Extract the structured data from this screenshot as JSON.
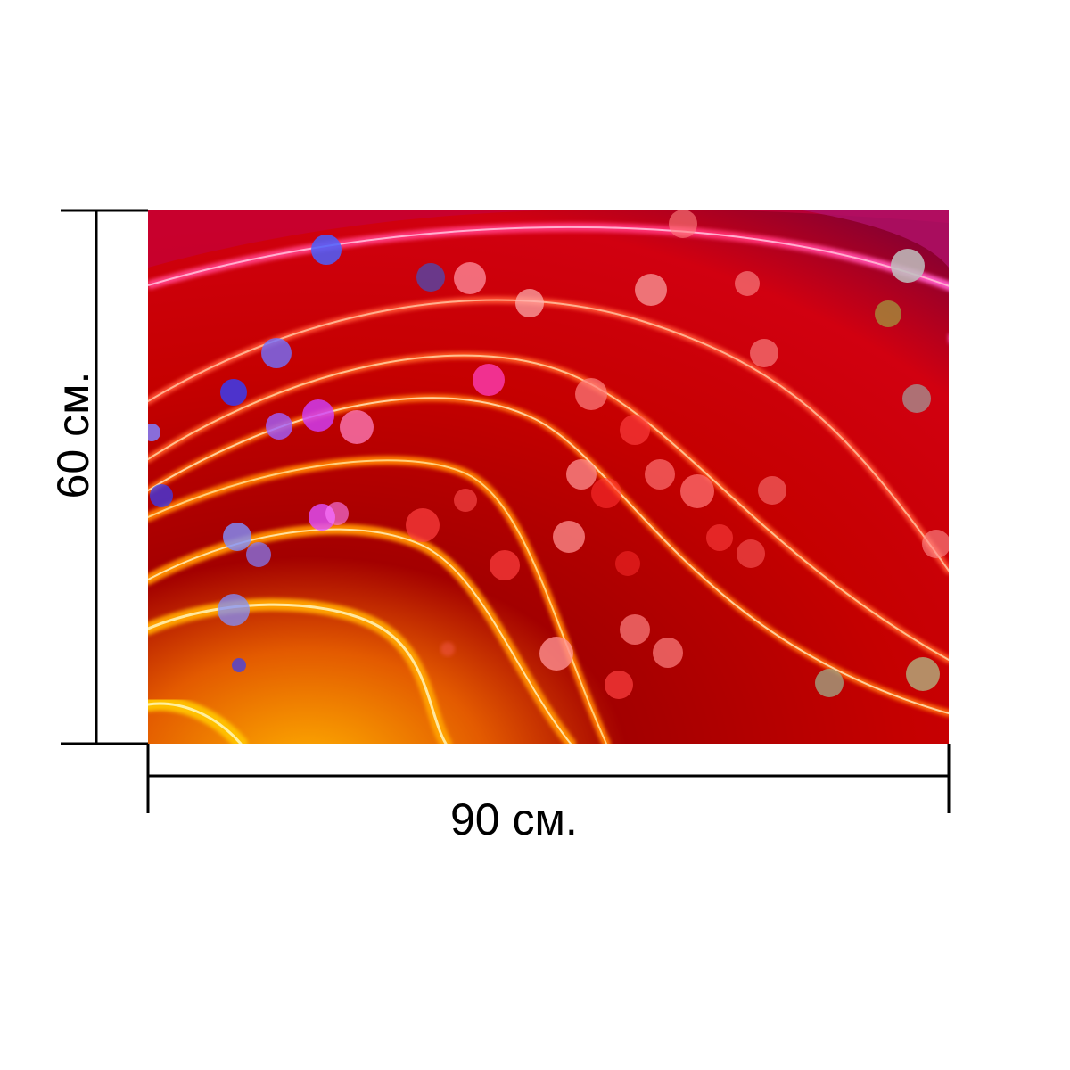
{
  "dimensions": {
    "width_label": "90 см.",
    "height_label": "60 см."
  },
  "colors": {
    "background": "#ffffff",
    "dimension_lines": "#000000",
    "artwork_base": "#b30000",
    "artwork_glow_orange": "#ff9a00",
    "artwork_glow_pink": "#ff4fa0",
    "artwork_purple": "#8a0040"
  },
  "artwork": {
    "description_icon": "abstract-wave-bokeh-image"
  }
}
